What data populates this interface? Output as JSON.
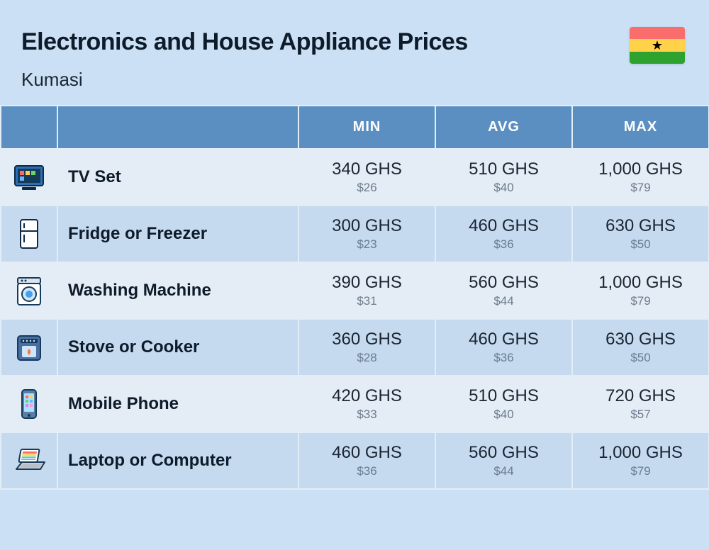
{
  "header": {
    "title": "Electronics and House Appliance Prices",
    "subtitle": "Kumasi",
    "flag": {
      "stripe_top": "#f96d6d",
      "stripe_mid": "#ffd24a",
      "stripe_bot": "#2fa12f",
      "star_color": "#000000"
    }
  },
  "table": {
    "columns": [
      "MIN",
      "AVG",
      "MAX"
    ],
    "rows": [
      {
        "icon": "tv",
        "name": "TV Set",
        "min_primary": "340 GHS",
        "min_secondary": "$26",
        "avg_primary": "510 GHS",
        "avg_secondary": "$40",
        "max_primary": "1,000 GHS",
        "max_secondary": "$79"
      },
      {
        "icon": "fridge",
        "name": "Fridge or Freezer",
        "min_primary": "300 GHS",
        "min_secondary": "$23",
        "avg_primary": "460 GHS",
        "avg_secondary": "$36",
        "max_primary": "630 GHS",
        "max_secondary": "$50"
      },
      {
        "icon": "washer",
        "name": "Washing Machine",
        "min_primary": "390 GHS",
        "min_secondary": "$31",
        "avg_primary": "560 GHS",
        "avg_secondary": "$44",
        "max_primary": "1,000 GHS",
        "max_secondary": "$79"
      },
      {
        "icon": "stove",
        "name": "Stove or Cooker",
        "min_primary": "360 GHS",
        "min_secondary": "$28",
        "avg_primary": "460 GHS",
        "avg_secondary": "$36",
        "max_primary": "630 GHS",
        "max_secondary": "$50"
      },
      {
        "icon": "phone",
        "name": "Mobile Phone",
        "min_primary": "420 GHS",
        "min_secondary": "$33",
        "avg_primary": "510 GHS",
        "avg_secondary": "$40",
        "max_primary": "720 GHS",
        "max_secondary": "$57"
      },
      {
        "icon": "laptop",
        "name": "Laptop or Computer",
        "min_primary": "460 GHS",
        "min_secondary": "$36",
        "avg_primary": "560 GHS",
        "avg_secondary": "$44",
        "max_primary": "1,000 GHS",
        "max_secondary": "$79"
      }
    ]
  },
  "colors": {
    "page_bg": "#cbe0f4",
    "header_bg": "#5b8fc1",
    "row_odd": "#e4edf6",
    "row_even": "#c5daef",
    "border": "#e3edf7",
    "text_primary": "#1b2430",
    "text_secondary": "#6b7b8c"
  }
}
